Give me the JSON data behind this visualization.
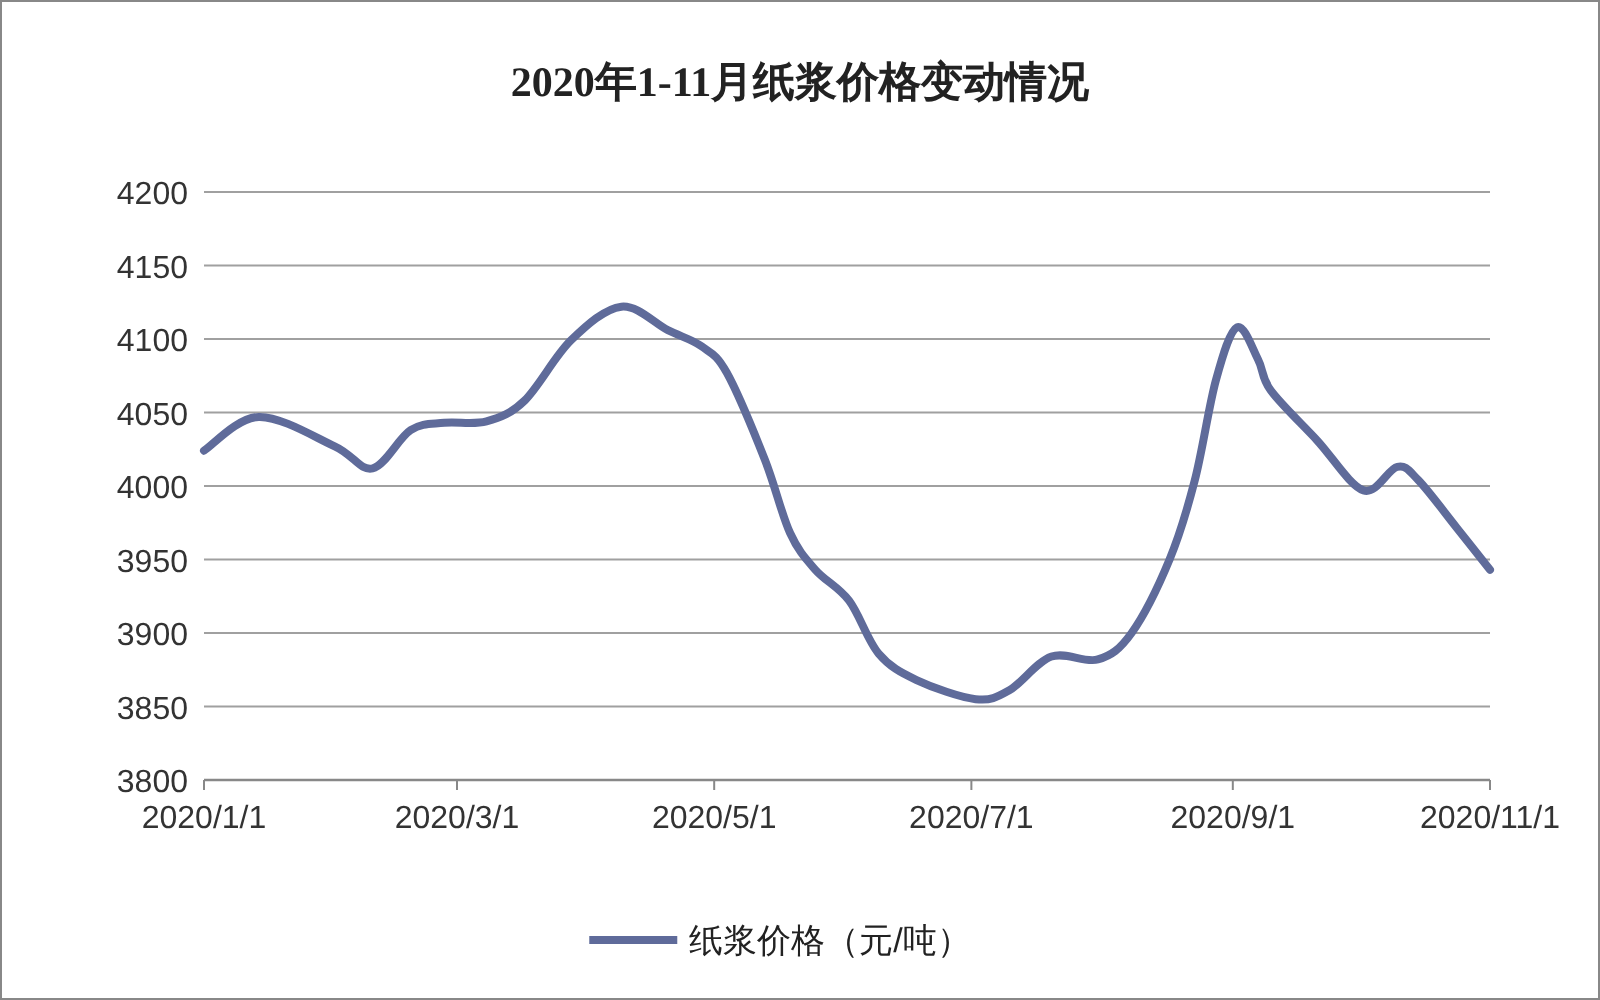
{
  "chart_data": {
    "type": "line",
    "title": "2020年1-11月纸浆价格变动情况",
    "x": [
      "2020-01-01",
      "2020-01-14",
      "2020-02-01",
      "2020-02-10",
      "2020-02-19",
      "2020-02-27",
      "2020-03-08",
      "2020-03-17",
      "2020-03-28",
      "2020-04-09",
      "2020-04-20",
      "2020-04-28",
      "2020-05-04",
      "2020-05-13",
      "2020-05-19",
      "2020-05-25",
      "2020-06-02",
      "2020-06-09",
      "2020-06-18",
      "2020-07-02",
      "2020-07-10",
      "2020-07-20",
      "2020-07-31",
      "2020-08-08",
      "2020-08-17",
      "2020-08-23",
      "2020-08-28",
      "2020-09-02",
      "2020-09-07",
      "2020-09-10",
      "2020-09-21",
      "2020-10-02",
      "2020-10-10",
      "2020-10-15",
      "2020-10-24",
      "2020-11-01"
    ],
    "series": [
      {
        "name": "纸浆价格（元/吨）",
        "color": "#5f6b9a",
        "values": [
          4024,
          4047,
          4027,
          4012,
          4038,
          4043,
          4044,
          4058,
          4099,
          4122,
          4106,
          4095,
          4077,
          4018,
          3968,
          3943,
          3922,
          3886,
          3868,
          3855,
          3861,
          3884,
          3882,
          3900,
          3950,
          4004,
          4072,
          4108,
          4086,
          4065,
          4031,
          3997,
          4013,
          4004,
          3972,
          3943
        ]
      }
    ],
    "xlim": [
      "2020-01-01",
      "2020-11-01"
    ],
    "xticks": [
      {
        "value": "2020-01-01",
        "label": "2020/1/1"
      },
      {
        "value": "2020-03-01",
        "label": "2020/3/1"
      },
      {
        "value": "2020-05-01",
        "label": "2020/5/1"
      },
      {
        "value": "2020-07-01",
        "label": "2020/7/1"
      },
      {
        "value": "2020-09-01",
        "label": "2020/9/1"
      },
      {
        "value": "2020-11-01",
        "label": "2020/11/1"
      }
    ],
    "ylim": [
      3800,
      4200
    ],
    "yticks": [
      3800,
      3850,
      3900,
      3950,
      4000,
      4050,
      4100,
      4150,
      4200
    ],
    "grid": "y",
    "legend": "bottom"
  }
}
